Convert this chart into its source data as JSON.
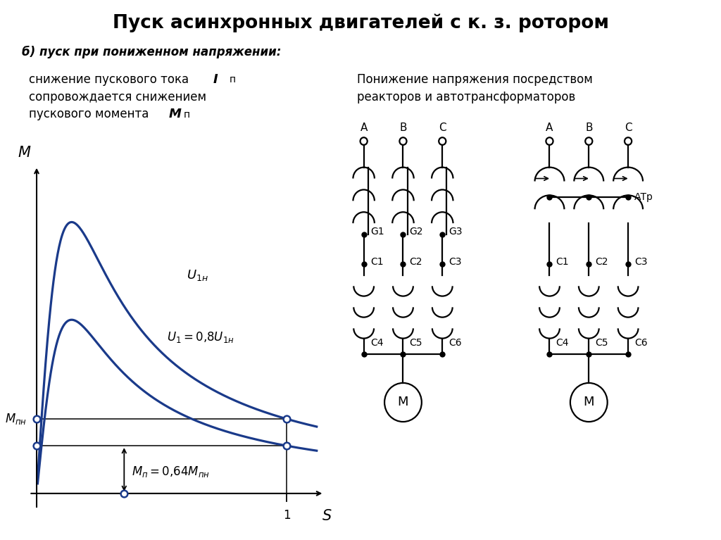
{
  "title": "Пуск асинхронных двигателей с к. з. ротором",
  "subtitle": "б) пуск при пониженном напряжении:",
  "right_title_line1": "Понижение напряжения посредством",
  "right_title_line2": "реакторов и автотрансформаторов",
  "curve_color": "#1a3a8a",
  "black": "#000000",
  "bg_color": "#ffffff",
  "labels_top": [
    "A",
    "B",
    "C"
  ],
  "G_labels": [
    "G1",
    "G2",
    "G3"
  ],
  "C1_labels": [
    "C1",
    "C2",
    "C3"
  ],
  "C4_labels": [
    "C4",
    "C5",
    "C6"
  ],
  "motor_label": "М",
  "atr_label": "АТр"
}
